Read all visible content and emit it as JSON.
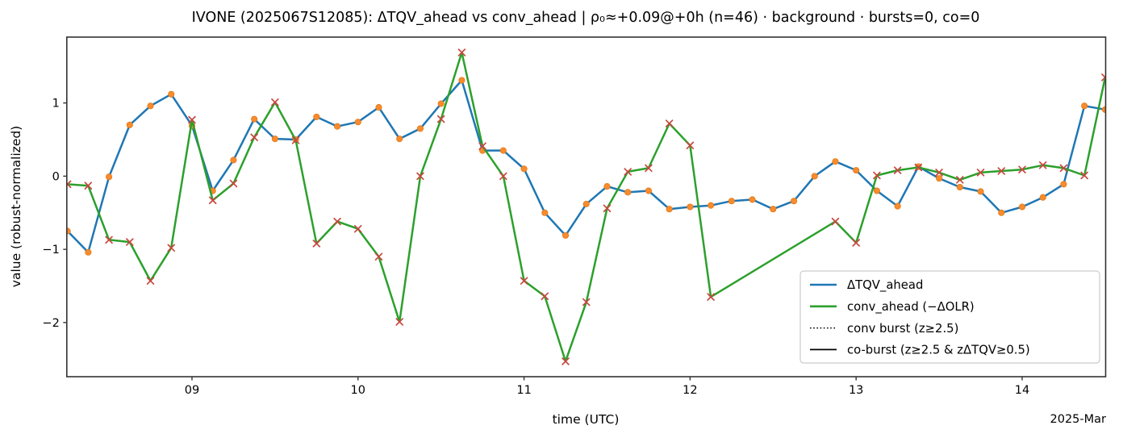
{
  "title": "IVONE (2025067S12085): ΔTQV_ahead vs conv_ahead | ρ₀≈+0.09@+0h (n=46) · background · bursts=0, co=0",
  "axes": {
    "xlabel": "time (UTC)",
    "ylabel": "value (robust-normalized)",
    "x_offset_label": "2025-Mar",
    "xticks": [
      {
        "day": 9,
        "label": "09"
      },
      {
        "day": 10,
        "label": "10"
      },
      {
        "day": 11,
        "label": "11"
      },
      {
        "day": 12,
        "label": "12"
      },
      {
        "day": 13,
        "label": "13"
      },
      {
        "day": 14,
        "label": "14"
      }
    ],
    "yticks": [
      {
        "value": 1,
        "label": "1"
      },
      {
        "value": 0,
        "label": "0"
      },
      {
        "value": -1,
        "label": "−1"
      },
      {
        "value": -2,
        "label": "−2"
      }
    ]
  },
  "legend": {
    "location": "lower right",
    "items": [
      {
        "label": "ΔTQV_ahead",
        "color": "#1f77b4",
        "dash": "solid",
        "width": 2.6
      },
      {
        "label": "conv_ahead (−ΔOLR)",
        "color": "#2ca02c",
        "dash": "solid",
        "width": 2.6
      },
      {
        "label": "conv burst (z≥2.5)",
        "color": "#000000",
        "dash": "dotted",
        "width": 1.5
      },
      {
        "label": "co-burst (z≥2.5 & zΔTQV≥0.5)",
        "color": "#000000",
        "dash": "solid",
        "width": 1.8
      }
    ]
  },
  "colors": {
    "dtqv_line": "#1f77b4",
    "conv_line": "#2ca02c",
    "dtqv_marker": "#f78b2e",
    "conv_marker": "#c9473f",
    "spine": "#333333",
    "legend_border": "#cccccc"
  },
  "chart_data": {
    "type": "line",
    "title": "IVONE (2025067S12085): ΔTQV_ahead vs conv_ahead | ρ₀≈+0.09@+0h (n=46) · background · bursts=0, co=0",
    "xlabel": "time (UTC)",
    "ylabel": "value (robust-normalized)",
    "x_unit": "day of 2025-Mar (UTC), 3-hourly",
    "xlim": [
      8.246,
      14.503
    ],
    "ylim": [
      -2.74,
      1.9
    ],
    "grid": false,
    "legend_loc": "lower right",
    "bursts": 0,
    "co_bursts": 0,
    "days": [
      8.25,
      8.375,
      8.5,
      8.625,
      8.75,
      8.875,
      9.0,
      9.125,
      9.25,
      9.375,
      9.5,
      9.625,
      9.75,
      9.875,
      10.0,
      10.125,
      10.25,
      10.375,
      10.5,
      10.625,
      10.75,
      10.875,
      11.0,
      11.125,
      11.25,
      11.375,
      11.5,
      11.625,
      11.75,
      11.875,
      12.0,
      12.125,
      12.25,
      12.375,
      12.5,
      12.625,
      12.75,
      12.875,
      13.0,
      13.125,
      13.25,
      13.375,
      13.5,
      13.625,
      13.75,
      13.875,
      14.0,
      14.125,
      14.25,
      14.375,
      14.5
    ],
    "series": [
      {
        "name": "ΔTQV_ahead",
        "marker": "circle",
        "values": [
          -0.75,
          -1.04,
          -0.01,
          0.7,
          0.96,
          1.12,
          0.69,
          -0.2,
          0.22,
          0.78,
          0.51,
          0.5,
          0.81,
          0.68,
          0.74,
          0.94,
          0.51,
          0.65,
          0.99,
          1.31,
          0.35,
          0.35,
          0.1,
          -0.5,
          -0.81,
          -0.38,
          -0.14,
          -0.22,
          -0.2,
          -0.45,
          -0.42,
          -0.4,
          -0.34,
          -0.32,
          -0.45,
          -0.34,
          0.0,
          0.2,
          0.08,
          -0.2,
          -0.41,
          0.13,
          -0.03,
          -0.15,
          -0.21,
          -0.5,
          -0.42,
          -0.29,
          -0.11,
          0.96,
          0.91
        ]
      },
      {
        "name": "conv_ahead (−ΔOLR)",
        "marker": "x",
        "values": [
          -0.11,
          -0.13,
          -0.87,
          -0.9,
          -1.43,
          -0.98,
          0.77,
          -0.33,
          -0.1,
          0.53,
          1.01,
          0.49,
          -0.92,
          -0.62,
          -0.72,
          -1.1,
          -1.99,
          0.0,
          0.78,
          1.69,
          0.41,
          0.0,
          -1.43,
          -1.64,
          -2.53,
          -1.72,
          -0.44,
          0.06,
          0.11,
          0.72,
          0.42,
          -1.65,
          null,
          null,
          null,
          null,
          null,
          -0.62,
          -0.91,
          0.01,
          0.08,
          0.12,
          0.05,
          -0.05,
          0.05,
          0.07,
          0.09,
          0.15,
          0.11,
          0.01,
          1.35
        ]
      }
    ]
  }
}
